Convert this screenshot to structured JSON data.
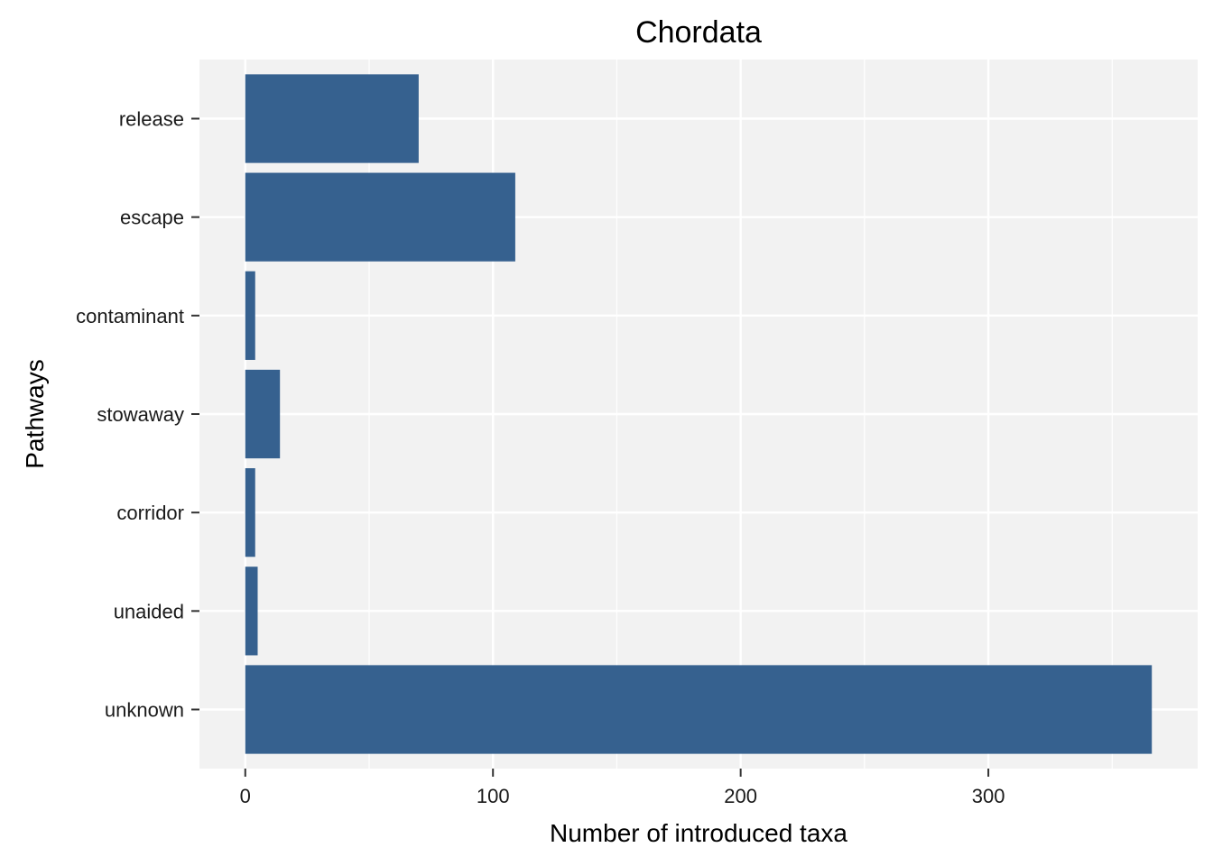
{
  "chart_data": {
    "type": "bar",
    "orientation": "horizontal",
    "title": "Chordata",
    "xlabel": "Number of introduced taxa",
    "ylabel": "Pathways",
    "categories": [
      "release",
      "escape",
      "contaminant",
      "stowaway",
      "corridor",
      "unaided",
      "unknown"
    ],
    "values": [
      70,
      109,
      4,
      14,
      4,
      5,
      366
    ],
    "xlim": [
      -18.5,
      384.5
    ],
    "xticks": [
      0,
      100,
      200,
      300
    ],
    "xtick_labels": [
      "0",
      "100",
      "200",
      "300"
    ],
    "grid": true,
    "bar_color": "#36618f",
    "panel_color": "#f2f2f2",
    "grid_color": "#ffffff"
  }
}
